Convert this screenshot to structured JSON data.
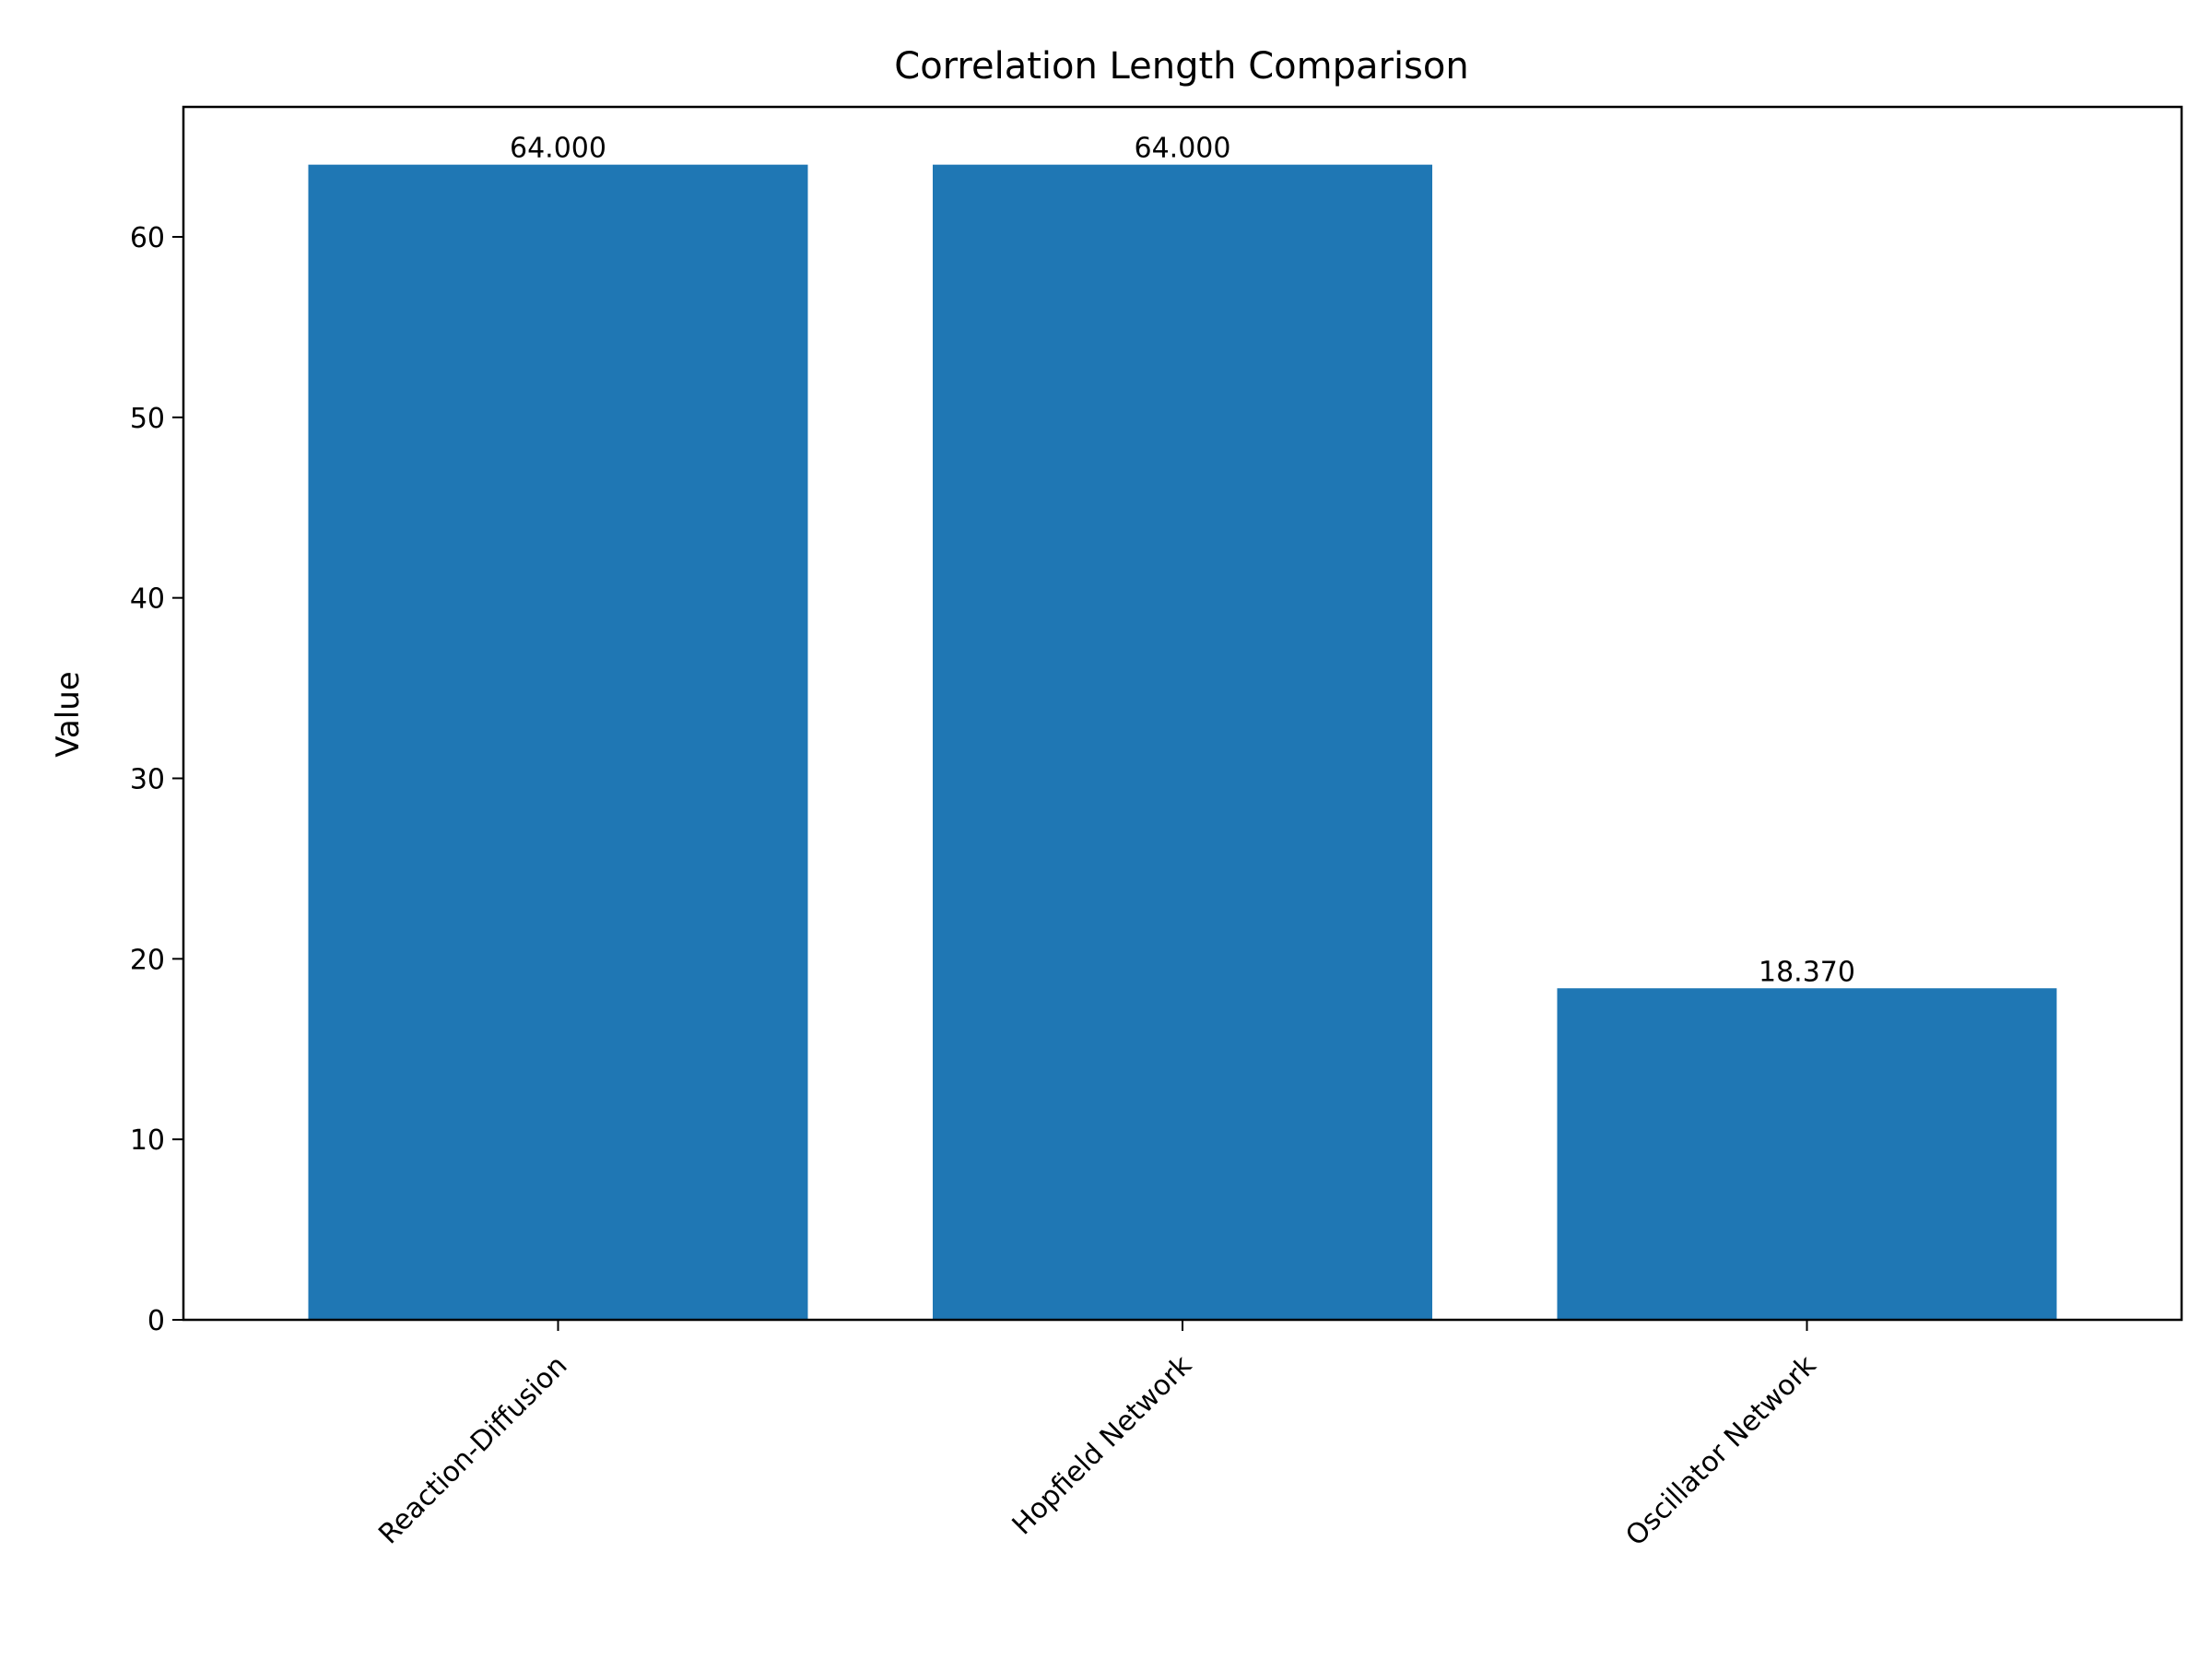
{
  "chart_data": {
    "type": "bar",
    "title": "Correlation Length Comparison",
    "xlabel": "",
    "ylabel": "Value",
    "categories": [
      "Reaction-Diffusion",
      "Hopfield Network",
      "Oscillator Network"
    ],
    "values": [
      64.0,
      64.0,
      18.37
    ],
    "value_labels": [
      "64.000",
      "64.000",
      "18.370"
    ],
    "ylim": [
      0,
      67.2
    ],
    "yticks": [
      0,
      10,
      20,
      30,
      40,
      50,
      60
    ],
    "ytick_labels": [
      "0",
      "10",
      "20",
      "30",
      "40",
      "50",
      "60"
    ],
    "bar_color": "#1f77b4",
    "grid": false,
    "x_tick_rotation_deg": 45
  }
}
